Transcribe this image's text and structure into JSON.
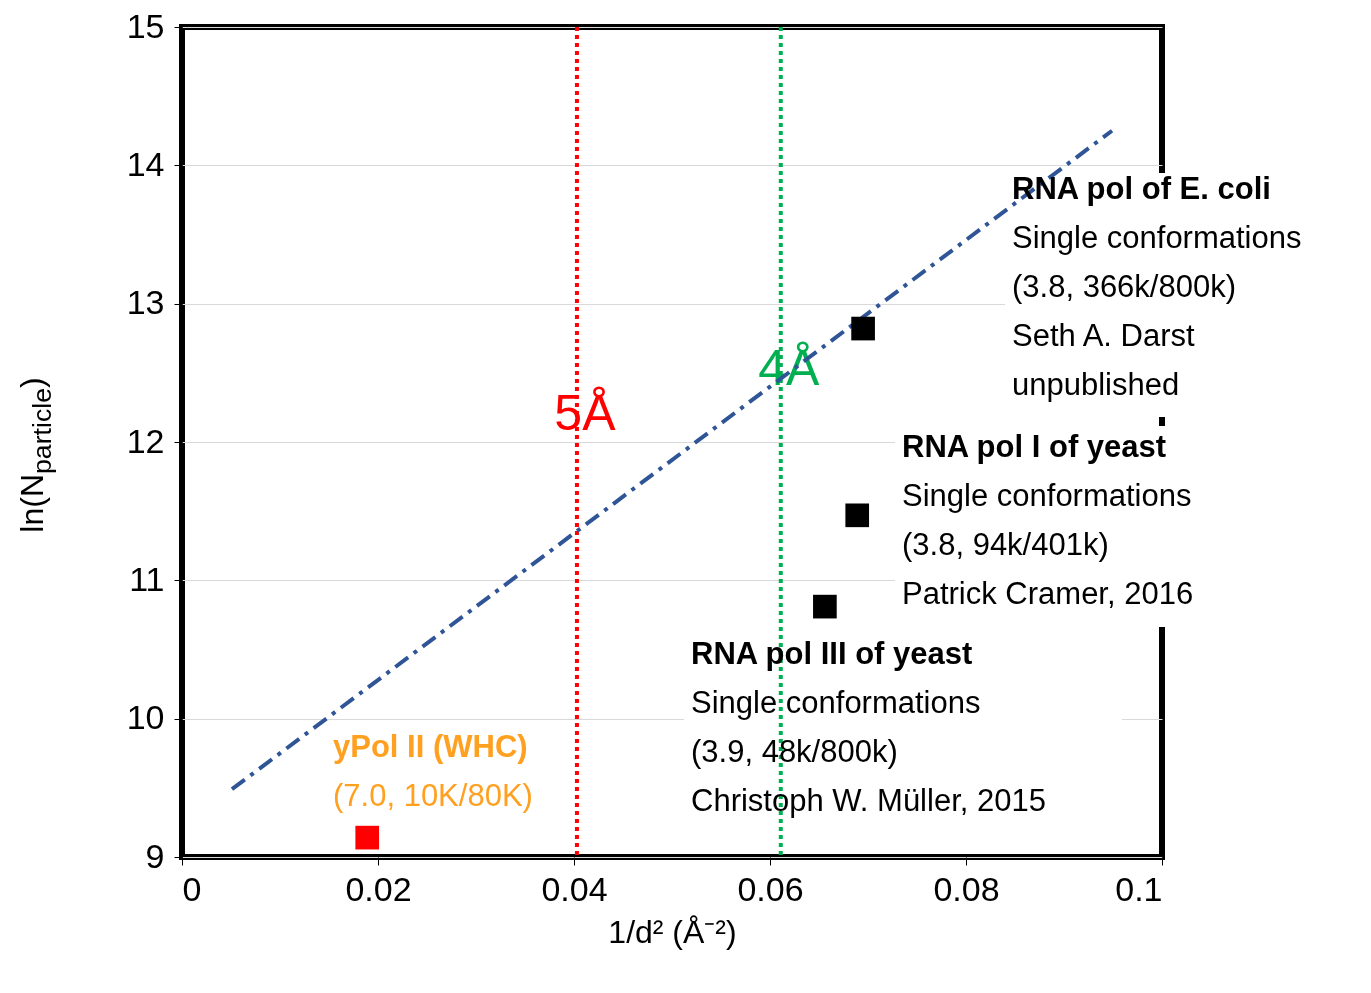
{
  "chart_data": {
    "type": "scatter",
    "xlabel": "1/d² (Å⁻²)",
    "ylabel": "ln(N$_{particle}$)",
    "xlim": [
      0,
      0.1
    ],
    "xticks": [
      0,
      0.02,
      0.04,
      0.06,
      0.08,
      0.1
    ],
    "ylim": [
      9,
      15
    ],
    "yticks": [
      9,
      10,
      11,
      12,
      13,
      14,
      15
    ],
    "grid": "y",
    "series": [
      {
        "color": "#ff0000",
        "marker": "square",
        "x": [
          0.0189
        ],
        "values": [
          9.14
        ]
      },
      {
        "color": "#000000",
        "marker": "square",
        "x": [
          0.0695,
          0.0689,
          0.0656
        ],
        "values": [
          12.82,
          11.47,
          10.81
        ]
      },
      {
        "type": "line",
        "color": "#2f5597",
        "marker": "none",
        "line_style": "dashed",
        "x": [
          0.0051,
          0.0949
        ],
        "values": [
          9.49,
          14.25
        ]
      }
    ],
    "ref_lines": [
      {
        "axis": "x",
        "value": 0.0403,
        "label": "5Å",
        "color": "#ff0000",
        "line_style": "dotted"
      },
      {
        "axis": "x",
        "value": 0.0611,
        "label": "4Å",
        "color": "#00b050",
        "line_style": "dotted"
      }
    ],
    "annotations": [
      "yPol II (WHC)\n(7.0,  10K/80K)",
      "RNA pol of E. coli\nSingle conformations\n(3.8, 366k/800k)\nSeth A. Darst\nunpublished",
      "RNA pol I of yeast\nSingle conformations\n(3.8, 94k/401k)\nPatrick Cramer, 2016",
      "RNA pol III of yeast\nSingle conformations\n(3.9, 48k/800k)\nChristoph W. Müller, 2015"
    ]
  }
}
